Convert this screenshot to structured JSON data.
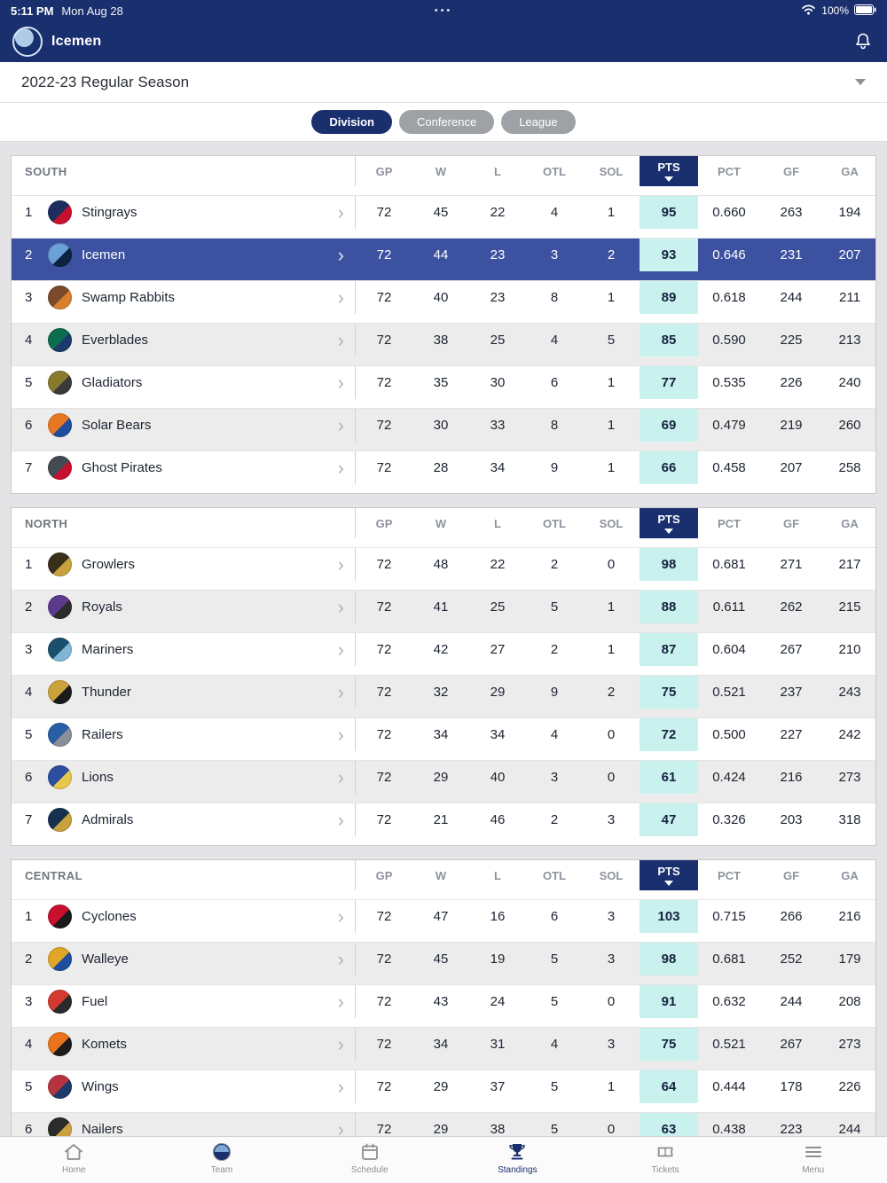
{
  "colors": {
    "navy": "#1a2f6e",
    "highlight_row": "#3c519f",
    "pts_bg": "#c9f2ee",
    "inactive_pill": "#9ea1a6"
  },
  "status_bar": {
    "time": "5:11 PM",
    "date": "Mon Aug 28",
    "dots": "•••",
    "battery": "100%"
  },
  "header": {
    "title": "Icemen"
  },
  "season_selector": {
    "label": "2022-23 Regular Season"
  },
  "tabs": [
    {
      "label": "Division",
      "active": true
    },
    {
      "label": "Conference",
      "active": false
    },
    {
      "label": "League",
      "active": false
    }
  ],
  "columns": [
    "GP",
    "W",
    "L",
    "OTL",
    "SOL",
    "PTS",
    "PCT",
    "GF",
    "GA"
  ],
  "sorted_column": "PTS",
  "divisions": [
    {
      "name": "SOUTH",
      "teams": [
        {
          "rank": 1,
          "name": "Stingrays",
          "highlight": false,
          "logo_colors": [
            "#1d2e5e",
            "#c8102e"
          ],
          "stats": [
            "72",
            "45",
            "22",
            "4",
            "1",
            "95",
            "0.660",
            "263",
            "194"
          ]
        },
        {
          "rank": 2,
          "name": "Icemen",
          "highlight": true,
          "logo_colors": [
            "#6ca0d8",
            "#0b2240"
          ],
          "stats": [
            "72",
            "44",
            "23",
            "3",
            "2",
            "93",
            "0.646",
            "231",
            "207"
          ]
        },
        {
          "rank": 3,
          "name": "Swamp Rabbits",
          "highlight": false,
          "logo_colors": [
            "#7a4a2b",
            "#d97f2e"
          ],
          "stats": [
            "72",
            "40",
            "23",
            "8",
            "1",
            "89",
            "0.618",
            "244",
            "211"
          ]
        },
        {
          "rank": 4,
          "name": "Everblades",
          "highlight": false,
          "logo_colors": [
            "#0b6e4f",
            "#1b3a6b"
          ],
          "stats": [
            "72",
            "38",
            "25",
            "4",
            "5",
            "85",
            "0.590",
            "225",
            "213"
          ]
        },
        {
          "rank": 5,
          "name": "Gladiators",
          "highlight": false,
          "logo_colors": [
            "#8a7a2e",
            "#3a3a3a"
          ],
          "stats": [
            "72",
            "35",
            "30",
            "6",
            "1",
            "77",
            "0.535",
            "226",
            "240"
          ]
        },
        {
          "rank": 6,
          "name": "Solar Bears",
          "highlight": false,
          "logo_colors": [
            "#e87722",
            "#1d4f9e"
          ],
          "stats": [
            "72",
            "30",
            "33",
            "8",
            "1",
            "69",
            "0.479",
            "219",
            "260"
          ]
        },
        {
          "rank": 7,
          "name": "Ghost Pirates",
          "highlight": false,
          "logo_colors": [
            "#444a52",
            "#c8102e"
          ],
          "stats": [
            "72",
            "28",
            "34",
            "9",
            "1",
            "66",
            "0.458",
            "207",
            "258"
          ]
        }
      ]
    },
    {
      "name": "NORTH",
      "teams": [
        {
          "rank": 1,
          "name": "Growlers",
          "highlight": false,
          "logo_colors": [
            "#3a2f1b",
            "#c9a23f"
          ],
          "stats": [
            "72",
            "48",
            "22",
            "2",
            "0",
            "98",
            "0.681",
            "271",
            "217"
          ]
        },
        {
          "rank": 2,
          "name": "Royals",
          "highlight": false,
          "logo_colors": [
            "#5b3a8e",
            "#2b2b2b"
          ],
          "stats": [
            "72",
            "41",
            "25",
            "5",
            "1",
            "88",
            "0.611",
            "262",
            "215"
          ]
        },
        {
          "rank": 3,
          "name": "Mariners",
          "highlight": false,
          "logo_colors": [
            "#1b4f6e",
            "#7fb5d5"
          ],
          "stats": [
            "72",
            "42",
            "27",
            "2",
            "1",
            "87",
            "0.604",
            "267",
            "210"
          ]
        },
        {
          "rank": 4,
          "name": "Thunder",
          "highlight": false,
          "logo_colors": [
            "#caa33c",
            "#1b1b1b"
          ],
          "stats": [
            "72",
            "32",
            "29",
            "9",
            "2",
            "75",
            "0.521",
            "237",
            "243"
          ]
        },
        {
          "rank": 5,
          "name": "Railers",
          "highlight": false,
          "logo_colors": [
            "#2a5fa5",
            "#8a8f98"
          ],
          "stats": [
            "72",
            "34",
            "34",
            "4",
            "0",
            "72",
            "0.500",
            "227",
            "242"
          ]
        },
        {
          "rank": 6,
          "name": "Lions",
          "highlight": false,
          "logo_colors": [
            "#2b4ea0",
            "#e8c84a"
          ],
          "stats": [
            "72",
            "29",
            "40",
            "3",
            "0",
            "61",
            "0.424",
            "216",
            "273"
          ]
        },
        {
          "rank": 7,
          "name": "Admirals",
          "highlight": false,
          "logo_colors": [
            "#16304f",
            "#c9a23f"
          ],
          "stats": [
            "72",
            "21",
            "46",
            "2",
            "3",
            "47",
            "0.326",
            "203",
            "318"
          ]
        }
      ]
    },
    {
      "name": "CENTRAL",
      "teams": [
        {
          "rank": 1,
          "name": "Cyclones",
          "highlight": false,
          "logo_colors": [
            "#c8102e",
            "#1b1b1b"
          ],
          "stats": [
            "72",
            "47",
            "16",
            "6",
            "3",
            "103",
            "0.715",
            "266",
            "216"
          ]
        },
        {
          "rank": 2,
          "name": "Walleye",
          "highlight": false,
          "logo_colors": [
            "#e0a526",
            "#1d4f9e"
          ],
          "stats": [
            "72",
            "45",
            "19",
            "5",
            "3",
            "98",
            "0.681",
            "252",
            "179"
          ]
        },
        {
          "rank": 3,
          "name": "Fuel",
          "highlight": false,
          "logo_colors": [
            "#d43a2f",
            "#2b2b2b"
          ],
          "stats": [
            "72",
            "43",
            "24",
            "5",
            "0",
            "91",
            "0.632",
            "244",
            "208"
          ]
        },
        {
          "rank": 4,
          "name": "Komets",
          "highlight": false,
          "logo_colors": [
            "#e8731c",
            "#1b1b1b"
          ],
          "stats": [
            "72",
            "34",
            "31",
            "4",
            "3",
            "75",
            "0.521",
            "267",
            "273"
          ]
        },
        {
          "rank": 5,
          "name": "Wings",
          "highlight": false,
          "logo_colors": [
            "#b5343f",
            "#1d3a6b"
          ],
          "stats": [
            "72",
            "29",
            "37",
            "5",
            "1",
            "64",
            "0.444",
            "178",
            "226"
          ]
        },
        {
          "rank": 6,
          "name": "Nailers",
          "highlight": false,
          "logo_colors": [
            "#2b2b2b",
            "#c9a23f"
          ],
          "stats": [
            "72",
            "29",
            "38",
            "5",
            "0",
            "63",
            "0.438",
            "223",
            "244"
          ]
        }
      ]
    }
  ],
  "bottom_nav": [
    {
      "label": "Home",
      "active": false
    },
    {
      "label": "Team",
      "active": false
    },
    {
      "label": "Schedule",
      "active": false
    },
    {
      "label": "Standings",
      "active": true
    },
    {
      "label": "Tickets",
      "active": false
    },
    {
      "label": "Menu",
      "active": false
    }
  ]
}
